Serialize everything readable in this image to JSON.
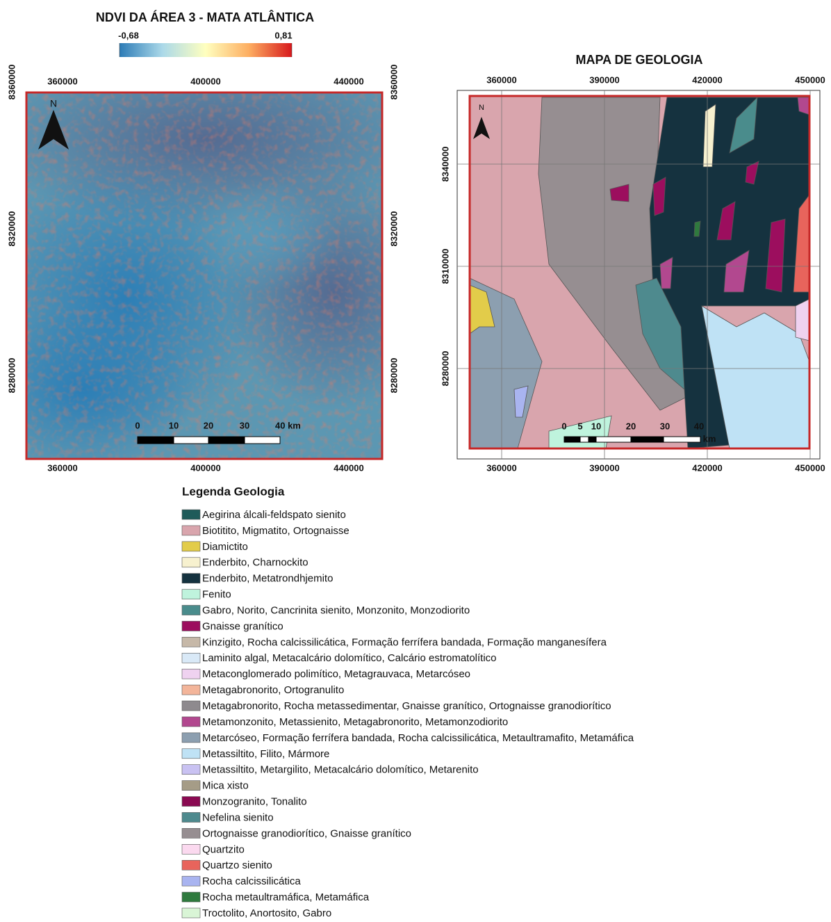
{
  "ndvi_map": {
    "title": "NDVI DA ÁREA 3 - MATA ATLÂNTICA",
    "colorbar_ticks": [
      {
        "value": -0.68,
        "label": "-0,68"
      },
      {
        "value": 0.81,
        "label": "0,81"
      }
    ],
    "x_ticks": [
      360000,
      400000,
      440000
    ],
    "y_ticks": [
      8360000,
      8320000,
      8280000
    ],
    "north": "N",
    "scale_bar": [
      "0",
      "10",
      "20",
      "30",
      "40 km"
    ]
  },
  "geology_map": {
    "title": "MAPA DE GEOLOGIA",
    "x_ticks": [
      360000,
      390000,
      420000,
      450000
    ],
    "y_ticks": [
      8340000,
      8310000,
      8280000
    ],
    "north": "N",
    "scale_bar": [
      "0",
      "5",
      "10",
      "20",
      "30",
      "40",
      "km"
    ]
  },
  "legend": {
    "title": "Legenda Geologia",
    "items": [
      {
        "label": "Aegirina álcali-feldspato sienito",
        "color": "#1f5b5a"
      },
      {
        "label": "Biotitito, Migmatito, Ortognaisse",
        "color": "#d9a5ad"
      },
      {
        "label": "Diamictito",
        "color": "#e2cc4a"
      },
      {
        "label": "Enderbito, Charnockito",
        "color": "#f7f1cf"
      },
      {
        "label": "Enderbito, Metatrondhjemito",
        "color": "#15323f"
      },
      {
        "label": "Fenito",
        "color": "#bff3dd"
      },
      {
        "label": "Gabro, Norito, Cancrinita sienito, Monzonito, Monzodiorito",
        "color": "#4a8c8c"
      },
      {
        "label": "Gnaisse granítico",
        "color": "#9c0e5e"
      },
      {
        "label": "Kinzigito, Rocha calcissilicática, Formação ferrífera bandada, Formação manganesífera",
        "color": "#c6b8a8"
      },
      {
        "label": "Laminito algal, Metacalcário dolomítico, Calcário estromatolítico",
        "color": "#d9e9f7"
      },
      {
        "label": "Metaconglomerado polimítico, Metagrauvaca, Metarcóseo",
        "color": "#efd2f0"
      },
      {
        "label": "Metagabronorito, Ortogranulito",
        "color": "#f3b59a"
      },
      {
        "label": "Metagabronorito, Rocha metassedimentar, Gnaisse granítico, Ortognaisse granodiorítico",
        "color": "#8e8a8e"
      },
      {
        "label": "Metamonzonito, Metassienito, Metagabronorito, Metamonzodiorito",
        "color": "#b2488f"
      },
      {
        "label": "Metarcóseo, Formação ferrífera bandada, Rocha calcissilicática, Metaultramafito, Metamáfica",
        "color": "#8c9fb0"
      },
      {
        "label": "Metassiltito, Filito, Mármore",
        "color": "#bfe2f5"
      },
      {
        "label": "Metassiltito, Metargilito, Metacalcário dolomítico, Metarenito",
        "color": "#c9c2f2"
      },
      {
        "label": "Mica xisto",
        "color": "#a59c87"
      },
      {
        "label": "Monzogranito, Tonalito",
        "color": "#8a0a52"
      },
      {
        "label": "Nefelina sienito",
        "color": "#4e8a8e"
      },
      {
        "label": "Ortognaisse granodiorítico, Gnaisse granítico",
        "color": "#968e91"
      },
      {
        "label": "Quartzito",
        "color": "#fbd9ef"
      },
      {
        "label": "Quartzo sienito",
        "color": "#e8645c"
      },
      {
        "label": "Rocha calcissilicática",
        "color": "#a9b4f0"
      },
      {
        "label": "Rocha metaultramáfica, Metamáfica",
        "color": "#2f7a3e"
      },
      {
        "label": "Troctolito, Anortosito, Gabro",
        "color": "#d9f5d6"
      }
    ]
  }
}
